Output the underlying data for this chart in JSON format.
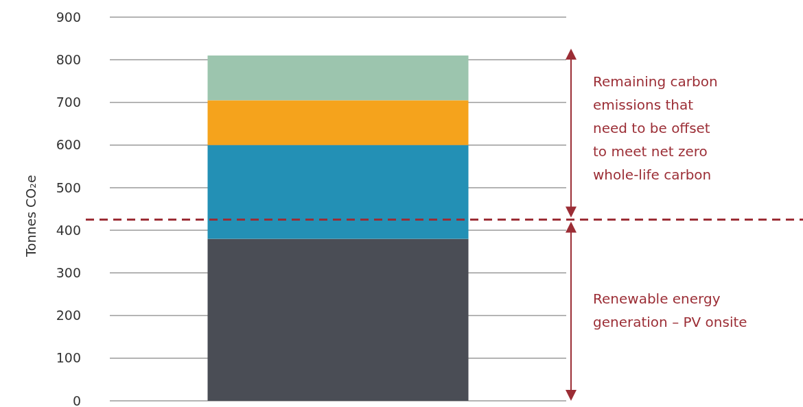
{
  "chart_data": {
    "type": "bar",
    "stacked": true,
    "categories": [
      null
    ],
    "ylabel": "Tonnes CO₂e",
    "ylim": [
      0,
      900
    ],
    "yticks": [
      0,
      100,
      200,
      300,
      400,
      500,
      600,
      700,
      800,
      900
    ],
    "grid": "y",
    "series": [
      {
        "color": "#4a4d55",
        "values": [
          380
        ]
      },
      {
        "color": "#2390b5",
        "values": [
          220
        ]
      },
      {
        "color": "#f5a31c",
        "values": [
          105
        ]
      },
      {
        "color": "#9cc5ae",
        "values": [
          105
        ]
      }
    ],
    "ref_lines": [
      {
        "axis": "y",
        "value": 425,
        "color": "#9b2d35",
        "line_style": "dashed"
      }
    ],
    "annotations": [
      "Remaining carbon\nemissions that\nneed to be offset\nto meet net zero\nwhole-life carbon",
      "Renewable energy\ngeneration – PV onsite"
    ]
  }
}
